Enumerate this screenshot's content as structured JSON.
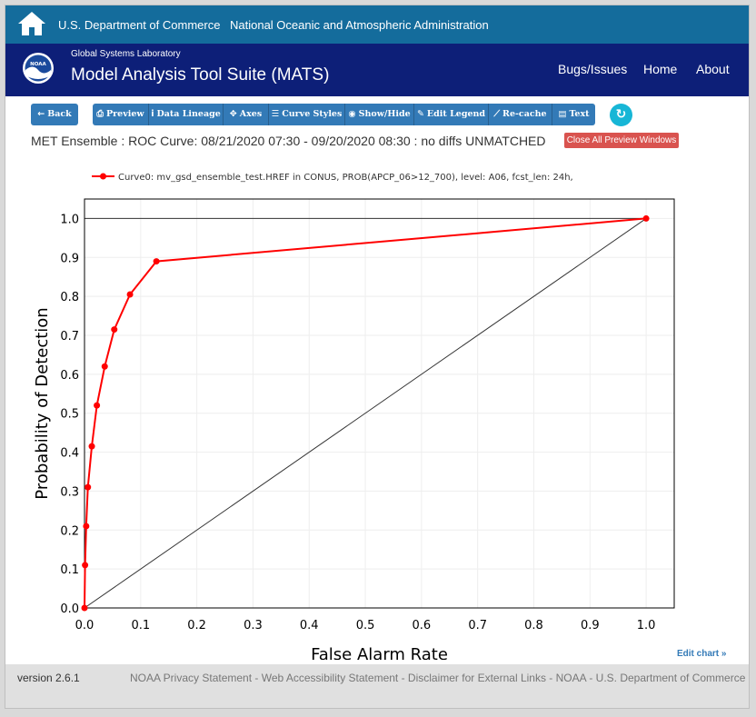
{
  "gov_bar": {
    "link1": "U.S. Department of Commerce",
    "link2": "National Oceanic and Atmospheric Administration"
  },
  "header": {
    "logo_text": "NOAA",
    "lab": "Global Systems Laboratory",
    "title": "Model Analysis Tool Suite (MATS)",
    "nav": [
      "Bugs/Issues",
      "Home",
      "About"
    ]
  },
  "toolbar": {
    "buttons": [
      {
        "icon": "←",
        "label": "Back"
      },
      {
        "icon": "⎙",
        "label": "Preview"
      },
      {
        "icon": "i",
        "label": "Data Lineage"
      },
      {
        "icon": "✥",
        "label": "Axes"
      },
      {
        "icon": "☰",
        "label": "Curve Styles"
      },
      {
        "icon": "◉",
        "label": "Show/Hide"
      },
      {
        "icon": "✎",
        "label": "Edit Legend"
      },
      {
        "icon": "⟋",
        "label": "Re-cache"
      },
      {
        "icon": "▤",
        "label": "Text"
      }
    ],
    "refresh_icon": "↻"
  },
  "curve_description": "MET Ensemble : ROC Curve: 08/21/2020 07:30 - 09/20/2020 08:30 : no diffs UNMATCHED",
  "close_button": "Close All Preview Windows",
  "chart_data": {
    "type": "line",
    "xlabel": "False Alarm Rate",
    "ylabel": "Probability of Detection",
    "xlim": [
      0,
      1.05
    ],
    "ylim": [
      0,
      1.05
    ],
    "xticks": [
      "0.0",
      "0.1",
      "0.2",
      "0.3",
      "0.4",
      "0.5",
      "0.6",
      "0.7",
      "0.8",
      "0.9",
      "1.0"
    ],
    "yticks": [
      "0.0",
      "0.1",
      "0.2",
      "0.3",
      "0.4",
      "0.5",
      "0.6",
      "0.7",
      "0.8",
      "0.9",
      "1.0"
    ],
    "grid": true,
    "legend_position": "top-left",
    "series": [
      {
        "name": "Curve0: mv_gsd_ensemble_test.HREF in CONUS, PROB(APCP_06>12_700), level: A06, fcst_len: 24h,",
        "color": "#ff0000",
        "x": [
          0.0,
          0.001,
          0.003,
          0.006,
          0.013,
          0.022,
          0.036,
          0.053,
          0.081,
          0.128,
          1.0
        ],
        "y": [
          0.0,
          0.11,
          0.21,
          0.31,
          0.415,
          0.52,
          0.62,
          0.715,
          0.805,
          0.89,
          1.0
        ]
      }
    ],
    "reference_lines": [
      {
        "x": [
          0,
          1
        ],
        "y": [
          0,
          1
        ],
        "color": "#333333"
      },
      {
        "x": [
          0,
          1
        ],
        "y": [
          1,
          1
        ],
        "color": "#333333"
      }
    ]
  },
  "edit_chart": "Edit chart »",
  "footer": {
    "version": "version 2.6.1",
    "links": [
      "NOAA Privacy Statement",
      "Web Accessibility Statement",
      "Disclaimer for External Links",
      "NOAA",
      "U.S. Department of Commerce"
    ]
  }
}
